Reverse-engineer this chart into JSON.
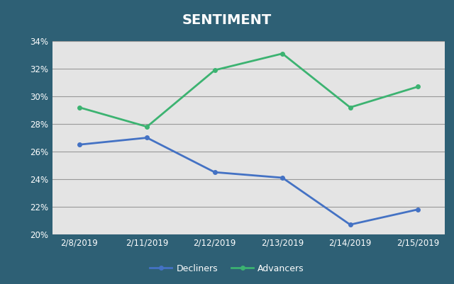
{
  "title": "SENTIMENT",
  "title_color": "#ffffff",
  "title_fontsize": 14,
  "title_fontweight": "bold",
  "background_fig": "#2e6075",
  "background_plot": "#e4e4e4",
  "x_labels": [
    "2/8/2019",
    "2/11/2019",
    "2/12/2019",
    "2/13/2019",
    "2/14/2019",
    "2/15/2019"
  ],
  "decliners": [
    26.5,
    27.0,
    24.5,
    24.1,
    20.7,
    21.8
  ],
  "advancers": [
    29.2,
    27.8,
    31.9,
    33.1,
    29.2,
    30.7
  ],
  "decliner_color": "#4472c4",
  "advancer_color": "#3cb371",
  "ylim": [
    20,
    34
  ],
  "yticks": [
    20,
    22,
    24,
    26,
    28,
    30,
    32,
    34
  ],
  "legend_decliners": "Decliners",
  "legend_advancers": "Advancers",
  "grid_color": "#999999",
  "tick_label_color": "#ffffff",
  "line_width": 2.0,
  "marker": "o",
  "marker_size": 4
}
